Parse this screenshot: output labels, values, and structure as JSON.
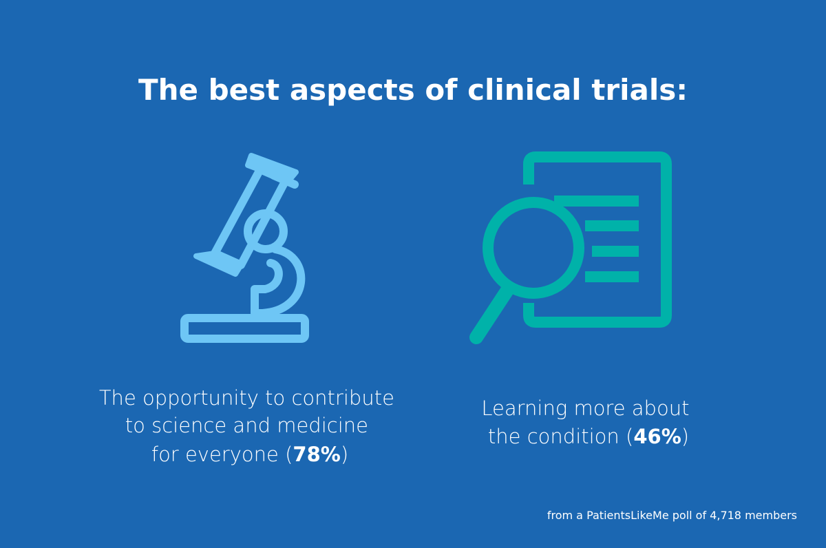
{
  "title": "The best aspects of clinical trials:",
  "items": [
    {
      "lines": [
        "The opportunity to contribute",
        "to science and medicine"
      ],
      "last_line": {
        "before": "for everyone (",
        "bold": "78%",
        "after": ")"
      }
    },
    {
      "lines": [
        "Learning more about"
      ],
      "last_line": {
        "before": "the condition (",
        "bold": "46%",
        "after": ")"
      }
    }
  ],
  "footer": "from a PatientsLikeMe poll of 4,718 members"
}
